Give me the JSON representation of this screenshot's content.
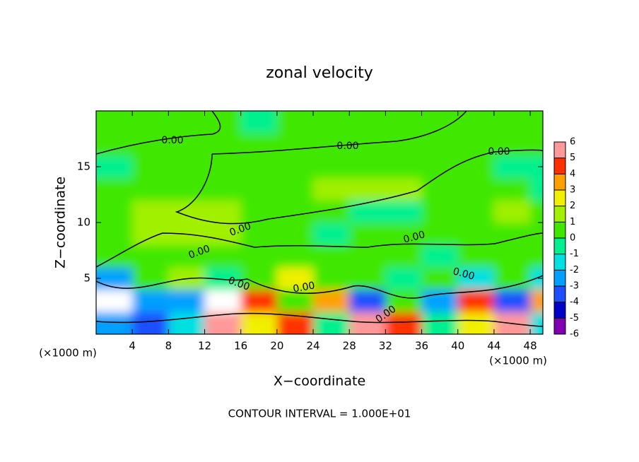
{
  "chart_data": {
    "type": "contour",
    "title": "zonal velocity",
    "xlabel": "X−coordinate",
    "ylabel": "Z−coordinate",
    "x_unit_label": "(×1000 m)",
    "footnote": "CONTOUR INTERVAL = 1.000E+01",
    "xlim": [
      0,
      49.4
    ],
    "ylim": [
      0,
      20
    ],
    "xticks": [
      4,
      8,
      12,
      16,
      20,
      24,
      28,
      32,
      36,
      40,
      44,
      48
    ],
    "yticks": [
      5,
      10,
      15
    ],
    "x": [
      2,
      6,
      10,
      14,
      18,
      22,
      26,
      30,
      34,
      38,
      42,
      46,
      50
    ],
    "y": [
      1,
      3,
      5,
      7,
      9,
      11,
      13,
      15,
      17,
      19
    ],
    "z": [
      [
        -3,
        -4,
        -2,
        5,
        2,
        4,
        -1,
        5,
        4,
        -1,
        2,
        5,
        -2
      ],
      [
        7,
        -3,
        -3,
        7,
        4,
        0,
        3,
        -4,
        0,
        -3,
        4,
        -4,
        3
      ],
      [
        -3,
        0,
        1,
        -1,
        0,
        2,
        0,
        0,
        -1,
        0,
        -2,
        0,
        -2
      ],
      [
        0,
        0.5,
        0,
        0,
        0.5,
        0,
        0,
        0.5,
        0,
        -0.5,
        0,
        0,
        0
      ],
      [
        0.5,
        1,
        1.5,
        1,
        0,
        0,
        -0.5,
        0,
        0,
        0,
        0.5,
        0.5,
        0.5
      ],
      [
        0.5,
        1,
        1,
        1.5,
        0.5,
        0.5,
        0,
        -0.5,
        -0.5,
        0,
        0.5,
        1,
        0.5
      ],
      [
        0.5,
        0.5,
        0.5,
        0.5,
        0.5,
        0.5,
        1,
        1.5,
        1,
        0.5,
        0,
        0,
        -0.5
      ],
      [
        -0.5,
        0.5,
        0.5,
        0.5,
        0.5,
        0.5,
        0.5,
        0.5,
        0.5,
        0.5,
        0.5,
        -0.5,
        -0.5
      ],
      [
        0.5,
        0.5,
        0.5,
        0.5,
        0.5,
        0.5,
        0.5,
        0.5,
        0.5,
        0.5,
        0.5,
        0.5,
        0.5
      ],
      [
        0.5,
        0.5,
        0.5,
        0.5,
        -0.5,
        0.5,
        0.5,
        0.5,
        0.5,
        0.5,
        0.5,
        0.5,
        0.5
      ]
    ],
    "colorbar": {
      "ticks": [
        -6,
        -5,
        -4,
        -3,
        -2,
        -1,
        0,
        1,
        2,
        3,
        4,
        5,
        6
      ],
      "colors": [
        "#8000b0",
        "#0000c8",
        "#1e50ff",
        "#00a0ff",
        "#00e0e0",
        "#00f090",
        "#40e800",
        "#a0f000",
        "#f0f000",
        "#ffa000",
        "#ff3000",
        "#ff9999"
      ]
    },
    "contour_labels": [
      {
        "value": 0,
        "label": "0.00"
      },
      {
        "value": 0,
        "label": "0.00"
      },
      {
        "value": 0,
        "label": "0.00"
      },
      {
        "value": 0,
        "label": "0.00"
      },
      {
        "value": 0,
        "label": "0.00"
      },
      {
        "value": 0,
        "label": "0.00"
      },
      {
        "value": 0,
        "label": "0.00"
      },
      {
        "value": 0,
        "label": "0.00"
      },
      {
        "value": 0,
        "label": "0.00"
      },
      {
        "value": 0,
        "label": "0.00"
      }
    ]
  }
}
